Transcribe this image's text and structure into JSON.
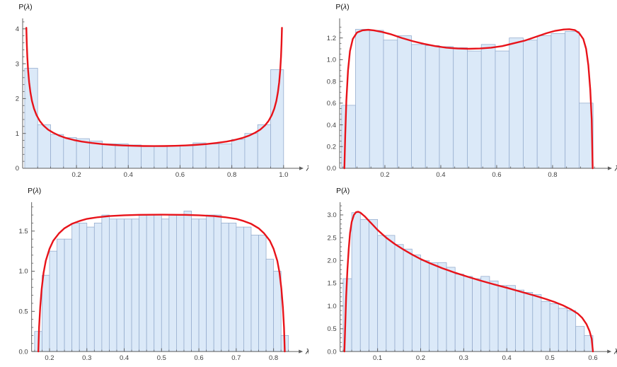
{
  "styles": {
    "background": "#ffffff",
    "bar_fill": "#dbe9f8",
    "bar_stroke": "#97aecf",
    "curve_color": "#e8131a",
    "axis_color": "#5f5f5f",
    "tick_label_color": "#3f3f3f"
  },
  "chart_data": [
    {
      "id": "top-left",
      "type": "bar",
      "subtype": "histogram-with-density-curve",
      "title": "",
      "xlabel": "λ",
      "ylabel": "P(λ)",
      "xlim": [
        -0.008,
        1.047
      ],
      "ylim": [
        0,
        4.3
      ],
      "grid": false,
      "legend": "none",
      "xticks": {
        "major": [
          0.2,
          0.4,
          0.6,
          0.8,
          1.0
        ],
        "labels": [
          "0.2",
          "0.4",
          "0.6",
          "0.8",
          "1.0"
        ],
        "minor_min": 0.05,
        "minor_max": 1.0,
        "minor_step": 0.05
      },
      "yticks": {
        "major": [
          0,
          1,
          2,
          3,
          4
        ],
        "labels": [
          "0",
          "1",
          "2",
          "3",
          "4"
        ],
        "minor_min": 0.2,
        "minor_max": 4.2,
        "minor_step": 0.2
      },
      "bars": {
        "start": 0.0,
        "width": 0.05,
        "heights": [
          2.87,
          1.25,
          0.97,
          0.88,
          0.85,
          0.78,
          0.7,
          0.7,
          0.67,
          0.65,
          0.64,
          0.65,
          0.65,
          0.73,
          0.7,
          0.7,
          0.83,
          1.0,
          1.25,
          2.83
        ]
      },
      "curve": {
        "name": "arcsine-density",
        "points": [
          [
            0.0063,
            4.03
          ],
          [
            0.008,
            3.58
          ],
          [
            0.01,
            3.2
          ],
          [
            0.013,
            2.82
          ],
          [
            0.017,
            2.47
          ],
          [
            0.022,
            2.18
          ],
          [
            0.028,
            1.93
          ],
          [
            0.036,
            1.71
          ],
          [
            0.046,
            1.52
          ],
          [
            0.058,
            1.36
          ],
          [
            0.072,
            1.23
          ],
          [
            0.09,
            1.11
          ],
          [
            0.11,
            1.02
          ],
          [
            0.135,
            0.932
          ],
          [
            0.16,
            0.868
          ],
          [
            0.19,
            0.811
          ],
          [
            0.22,
            0.768
          ],
          [
            0.26,
            0.726
          ],
          [
            0.3,
            0.694
          ],
          [
            0.34,
            0.672
          ],
          [
            0.38,
            0.656
          ],
          [
            0.42,
            0.645
          ],
          [
            0.46,
            0.639
          ],
          [
            0.5,
            0.637
          ],
          [
            0.54,
            0.639
          ],
          [
            0.58,
            0.645
          ],
          [
            0.62,
            0.656
          ],
          [
            0.66,
            0.672
          ],
          [
            0.7,
            0.694
          ],
          [
            0.74,
            0.726
          ],
          [
            0.78,
            0.768
          ],
          [
            0.81,
            0.811
          ],
          [
            0.84,
            0.868
          ],
          [
            0.865,
            0.932
          ],
          [
            0.89,
            1.02
          ],
          [
            0.91,
            1.11
          ],
          [
            0.928,
            1.23
          ],
          [
            0.942,
            1.36
          ],
          [
            0.954,
            1.52
          ],
          [
            0.964,
            1.71
          ],
          [
            0.972,
            1.93
          ],
          [
            0.978,
            2.18
          ],
          [
            0.983,
            2.47
          ],
          [
            0.987,
            2.82
          ],
          [
            0.99,
            3.2
          ],
          [
            0.992,
            3.58
          ],
          [
            0.9937,
            4.03
          ]
        ]
      }
    },
    {
      "id": "top-right",
      "type": "bar",
      "subtype": "histogram-with-density-curve",
      "title": "",
      "xlabel": "λ",
      "ylabel": "P(λ)",
      "xlim": [
        0.038,
        0.985
      ],
      "ylim": [
        0,
        1.38
      ],
      "grid": false,
      "legend": "none",
      "xticks": {
        "major": [
          0.2,
          0.4,
          0.6,
          0.8
        ],
        "labels": [
          "0.2",
          "0.4",
          "0.6",
          "0.8"
        ],
        "minor_min": 0.05,
        "minor_max": 0.95,
        "minor_step": 0.05
      },
      "yticks": {
        "major": [
          0,
          0.2,
          0.4,
          0.6,
          0.8,
          1.0,
          1.2
        ],
        "labels": [
          "0.0",
          "0.2",
          "0.4",
          "0.6",
          "0.8",
          "1.0",
          "1.2"
        ],
        "minor_min": 0.05,
        "minor_max": 1.3,
        "minor_step": 0.05
      },
      "bars": {
        "start": 0.045,
        "width": 0.05,
        "heights": [
          0.58,
          1.28,
          1.27,
          1.18,
          1.22,
          1.14,
          1.13,
          1.12,
          1.11,
          1.08,
          1.14,
          1.08,
          1.2,
          1.18,
          1.22,
          1.24,
          1.26,
          0.6
        ]
      },
      "curve": {
        "name": "bimodal-density",
        "points": [
          [
            0.055,
            0.0
          ],
          [
            0.058,
            0.3
          ],
          [
            0.062,
            0.62
          ],
          [
            0.068,
            0.9
          ],
          [
            0.075,
            1.08
          ],
          [
            0.085,
            1.19
          ],
          [
            0.1,
            1.25
          ],
          [
            0.12,
            1.27
          ],
          [
            0.14,
            1.275
          ],
          [
            0.16,
            1.27
          ],
          [
            0.19,
            1.255
          ],
          [
            0.22,
            1.235
          ],
          [
            0.26,
            1.2
          ],
          [
            0.3,
            1.17
          ],
          [
            0.34,
            1.145
          ],
          [
            0.38,
            1.125
          ],
          [
            0.42,
            1.11
          ],
          [
            0.46,
            1.103
          ],
          [
            0.5,
            1.1
          ],
          [
            0.54,
            1.103
          ],
          [
            0.58,
            1.11
          ],
          [
            0.62,
            1.125
          ],
          [
            0.66,
            1.15
          ],
          [
            0.7,
            1.175
          ],
          [
            0.74,
            1.21
          ],
          [
            0.78,
            1.245
          ],
          [
            0.81,
            1.266
          ],
          [
            0.84,
            1.278
          ],
          [
            0.86,
            1.28
          ],
          [
            0.88,
            1.272
          ],
          [
            0.895,
            1.245
          ],
          [
            0.91,
            1.19
          ],
          [
            0.92,
            1.1
          ],
          [
            0.928,
            0.95
          ],
          [
            0.935,
            0.72
          ],
          [
            0.94,
            0.45
          ],
          [
            0.9435,
            0.0
          ]
        ]
      }
    },
    {
      "id": "bottom-left",
      "type": "bar",
      "subtype": "histogram-with-density-curve",
      "title": "",
      "xlabel": "λ",
      "ylabel": "P(λ)",
      "xlim": [
        0.152,
        0.858
      ],
      "ylim": [
        0,
        1.86
      ],
      "grid": false,
      "legend": "none",
      "xticks": {
        "major": [
          0.2,
          0.3,
          0.4,
          0.5,
          0.6,
          0.7,
          0.8
        ],
        "labels": [
          "0.2",
          "0.3",
          "0.4",
          "0.5",
          "0.6",
          "0.7",
          "0.8"
        ],
        "minor_min": 0.16,
        "minor_max": 0.84,
        "minor_step": 0.02
      },
      "yticks": {
        "major": [
          0,
          0.5,
          1.0,
          1.5
        ],
        "labels": [
          "0.0",
          "0.5",
          "1.0",
          "1.5"
        ],
        "minor_min": 0.1,
        "minor_max": 1.8,
        "minor_step": 0.1
      },
      "bars": {
        "start": 0.16,
        "width": 0.02,
        "heights": [
          0.25,
          0.95,
          1.25,
          1.4,
          1.4,
          1.6,
          1.6,
          1.55,
          1.6,
          1.7,
          1.65,
          1.65,
          1.65,
          1.65,
          1.7,
          1.7,
          1.7,
          1.65,
          1.7,
          1.7,
          1.75,
          1.65,
          1.65,
          1.7,
          1.7,
          1.6,
          1.6,
          1.55,
          1.55,
          1.45,
          1.45,
          1.15,
          1.0,
          0.2
        ]
      },
      "curve": {
        "name": "semicircle-density",
        "points": [
          [
            0.17,
            0.0
          ],
          [
            0.172,
            0.3
          ],
          [
            0.175,
            0.55
          ],
          [
            0.179,
            0.78
          ],
          [
            0.184,
            0.98
          ],
          [
            0.19,
            1.13
          ],
          [
            0.2,
            1.28
          ],
          [
            0.21,
            1.38
          ],
          [
            0.225,
            1.47
          ],
          [
            0.24,
            1.535
          ],
          [
            0.26,
            1.59
          ],
          [
            0.28,
            1.625
          ],
          [
            0.3,
            1.652
          ],
          [
            0.33,
            1.673
          ],
          [
            0.36,
            1.687
          ],
          [
            0.4,
            1.697
          ],
          [
            0.44,
            1.702
          ],
          [
            0.5,
            1.704
          ],
          [
            0.56,
            1.702
          ],
          [
            0.6,
            1.697
          ],
          [
            0.64,
            1.687
          ],
          [
            0.67,
            1.673
          ],
          [
            0.7,
            1.652
          ],
          [
            0.72,
            1.625
          ],
          [
            0.74,
            1.59
          ],
          [
            0.76,
            1.535
          ],
          [
            0.775,
            1.47
          ],
          [
            0.79,
            1.38
          ],
          [
            0.8,
            1.28
          ],
          [
            0.81,
            1.13
          ],
          [
            0.816,
            0.98
          ],
          [
            0.821,
            0.78
          ],
          [
            0.825,
            0.55
          ],
          [
            0.828,
            0.3
          ],
          [
            0.83,
            0.0
          ]
        ]
      }
    },
    {
      "id": "bottom-right",
      "type": "bar",
      "subtype": "histogram-with-density-curve",
      "title": "",
      "xlabel": "λ",
      "ylabel": "P(λ)",
      "xlim": [
        0.013,
        0.625
      ],
      "ylim": [
        0,
        3.28
      ],
      "grid": false,
      "legend": "none",
      "xticks": {
        "major": [
          0.1,
          0.2,
          0.3,
          0.4,
          0.5,
          0.6
        ],
        "labels": [
          "0.1",
          "0.2",
          "0.3",
          "0.4",
          "0.5",
          "0.6"
        ],
        "minor_min": 0.02,
        "minor_max": 0.6,
        "minor_step": 0.02
      },
      "yticks": {
        "major": [
          0,
          0.5,
          1.0,
          1.5,
          2.0,
          2.5,
          3.0
        ],
        "labels": [
          "0.0",
          "0.5",
          "1.0",
          "1.5",
          "2.0",
          "2.5",
          "3.0"
        ],
        "minor_min": 0.1,
        "minor_max": 3.2,
        "minor_step": 0.1
      },
      "bars": {
        "start": 0.02,
        "width": 0.02,
        "heights": [
          1.6,
          3.05,
          2.9,
          2.9,
          2.55,
          2.55,
          2.35,
          2.25,
          2.12,
          2.0,
          1.95,
          1.95,
          1.85,
          1.7,
          1.65,
          1.6,
          1.65,
          1.55,
          1.45,
          1.45,
          1.35,
          1.3,
          1.25,
          1.1,
          1.05,
          0.95,
          0.9,
          0.55,
          0.35
        ]
      },
      "curve": {
        "name": "marchenko-pastur-like-density",
        "points": [
          [
            0.023,
            0.0
          ],
          [
            0.025,
            0.6
          ],
          [
            0.027,
            1.2
          ],
          [
            0.03,
            1.8
          ],
          [
            0.033,
            2.25
          ],
          [
            0.036,
            2.6
          ],
          [
            0.04,
            2.85
          ],
          [
            0.045,
            3.0
          ],
          [
            0.05,
            3.06
          ],
          [
            0.055,
            3.07
          ],
          [
            0.06,
            3.05
          ],
          [
            0.07,
            2.97
          ],
          [
            0.08,
            2.87
          ],
          [
            0.09,
            2.77
          ],
          [
            0.1,
            2.67
          ],
          [
            0.12,
            2.5
          ],
          [
            0.14,
            2.36
          ],
          [
            0.16,
            2.24
          ],
          [
            0.18,
            2.13
          ],
          [
            0.2,
            2.03
          ],
          [
            0.22,
            1.945
          ],
          [
            0.25,
            1.83
          ],
          [
            0.28,
            1.73
          ],
          [
            0.31,
            1.64
          ],
          [
            0.34,
            1.555
          ],
          [
            0.37,
            1.475
          ],
          [
            0.4,
            1.4
          ],
          [
            0.43,
            1.32
          ],
          [
            0.46,
            1.24
          ],
          [
            0.49,
            1.155
          ],
          [
            0.51,
            1.09
          ],
          [
            0.53,
            1.015
          ],
          [
            0.55,
            0.92
          ],
          [
            0.565,
            0.83
          ],
          [
            0.575,
            0.74
          ],
          [
            0.585,
            0.6
          ],
          [
            0.592,
            0.45
          ],
          [
            0.597,
            0.28
          ],
          [
            0.6,
            0.0
          ]
        ]
      }
    }
  ]
}
